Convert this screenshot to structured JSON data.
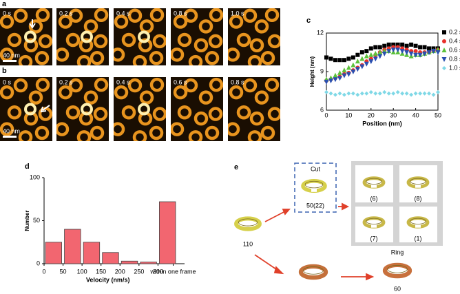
{
  "panels": {
    "a": {
      "label": "a",
      "frames": [
        "0 s",
        "0.2 s",
        "0.4 s",
        "0.8 s",
        "1.0 s"
      ],
      "scale_bar": "40 nm"
    },
    "b": {
      "label": "b",
      "frames": [
        "0 s",
        "0.2 s",
        "0.4 s",
        "0.6 s",
        "0.8 s"
      ],
      "scale_bar": "40 nm"
    },
    "c": {
      "label": "c"
    },
    "d": {
      "label": "d"
    },
    "e": {
      "label": "e",
      "start": "110",
      "cut": "Cut",
      "cut_count": "50(22)",
      "products": [
        "(6)",
        "(8)",
        "(7)",
        "(1)"
      ],
      "ring": "Ring",
      "ring_count": "60"
    }
  },
  "chart_data": [
    {
      "type": "scatter",
      "x": [
        0,
        2,
        4,
        6,
        8,
        10,
        12,
        14,
        16,
        18,
        20,
        22,
        24,
        26,
        28,
        30,
        32,
        34,
        36,
        38,
        40,
        42,
        44,
        46,
        48,
        50
      ],
      "xlim": [
        0,
        50
      ],
      "xticks": [
        0,
        10,
        20,
        30,
        40,
        50
      ],
      "ylim": [
        6,
        12
      ],
      "yticks": [
        6,
        9,
        12
      ],
      "xlabel": "Position (nm)",
      "ylabel": "Height (nm)",
      "legend": "right",
      "series": [
        {
          "name": "0.2 s",
          "color": "#000000",
          "marker": "square",
          "values": [
            10.1,
            10.0,
            9.9,
            9.9,
            9.9,
            10.0,
            10.1,
            10.3,
            10.5,
            10.6,
            10.8,
            10.9,
            10.9,
            11.0,
            11.1,
            11.1,
            11.1,
            11.1,
            11.0,
            11.1,
            11.0,
            10.9,
            10.9,
            10.8,
            10.8,
            10.8
          ]
        },
        {
          "name": "0.4 s",
          "color": "#e8302a",
          "marker": "circle",
          "values": [
            8.3,
            8.4,
            8.5,
            8.6,
            8.8,
            8.9,
            9.1,
            9.3,
            9.5,
            9.8,
            10.0,
            10.3,
            10.5,
            10.7,
            10.8,
            10.9,
            10.9,
            10.8,
            10.7,
            10.6,
            10.6,
            10.5,
            10.5,
            10.5,
            10.6,
            10.7
          ]
        },
        {
          "name": "0.6 s",
          "color": "#5cc23a",
          "marker": "triangle",
          "values": [
            8.4,
            8.5,
            8.7,
            8.9,
            9.1,
            9.3,
            9.5,
            9.8,
            10.0,
            10.2,
            10.3,
            10.4,
            10.5,
            10.6,
            10.6,
            10.5,
            10.5,
            10.4,
            10.3,
            10.2,
            10.3,
            10.3,
            10.4,
            10.5,
            10.6,
            10.7
          ]
        },
        {
          "name": "0.8 s",
          "color": "#2a4fb0",
          "marker": "triangle-down",
          "values": [
            8.2,
            8.3,
            8.4,
            8.5,
            8.7,
            8.8,
            9.0,
            9.2,
            9.4,
            9.6,
            9.8,
            10.0,
            10.2,
            10.4,
            10.6,
            10.7,
            10.7,
            10.6,
            10.5,
            10.4,
            10.3,
            10.3,
            10.4,
            10.5,
            10.6,
            10.5
          ]
        },
        {
          "name": "1.0 s",
          "color": "#7fd8e6",
          "marker": "diamond",
          "values": [
            7.4,
            7.3,
            7.2,
            7.3,
            7.2,
            7.3,
            7.3,
            7.2,
            7.3,
            7.3,
            7.4,
            7.3,
            7.3,
            7.4,
            7.3,
            7.3,
            7.4,
            7.3,
            7.3,
            7.2,
            7.3,
            7.3,
            7.3,
            7.3,
            7.2,
            7.4
          ]
        }
      ]
    },
    {
      "type": "histogram",
      "bins": [
        0,
        50,
        100,
        150,
        200,
        250,
        300,
        350
      ],
      "values": [
        25,
        40,
        25,
        13,
        3,
        2,
        72
      ],
      "color": "#f26670",
      "xlim": [
        0,
        370
      ],
      "xticks": [
        0,
        50,
        100,
        150,
        200,
        250,
        300,
        {
          "value": 340,
          "label": "within one frame"
        }
      ],
      "ylim": [
        0,
        100
      ],
      "yticks": [
        0,
        50,
        100
      ],
      "xlabel": "Velocity (nm/s)",
      "ylabel": "Number"
    }
  ]
}
